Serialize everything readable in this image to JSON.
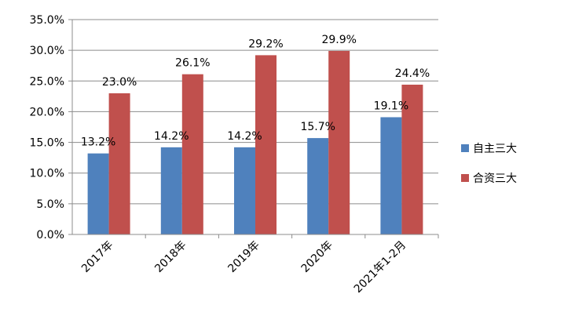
{
  "chart_data": {
    "type": "bar",
    "categories": [
      "2017年",
      "2018年",
      "2019年",
      "2020年",
      "2021年1-2月"
    ],
    "series": [
      {
        "name": "自主三大",
        "values": [
          13.2,
          14.2,
          14.2,
          15.7,
          19.1
        ],
        "color": "#4F81BD"
      },
      {
        "name": "合资三大",
        "values": [
          23.0,
          26.1,
          29.2,
          29.9,
          24.4
        ],
        "color": "#C0504D"
      }
    ],
    "ylim": [
      0,
      35
    ],
    "yticks": [
      0,
      5,
      10,
      15,
      20,
      25,
      30,
      35
    ],
    "ytick_format": "{v}%",
    "value_format": "{v}%",
    "grid": true,
    "legend_position": "right",
    "xlabel": "",
    "ylabel": "",
    "title": ""
  }
}
